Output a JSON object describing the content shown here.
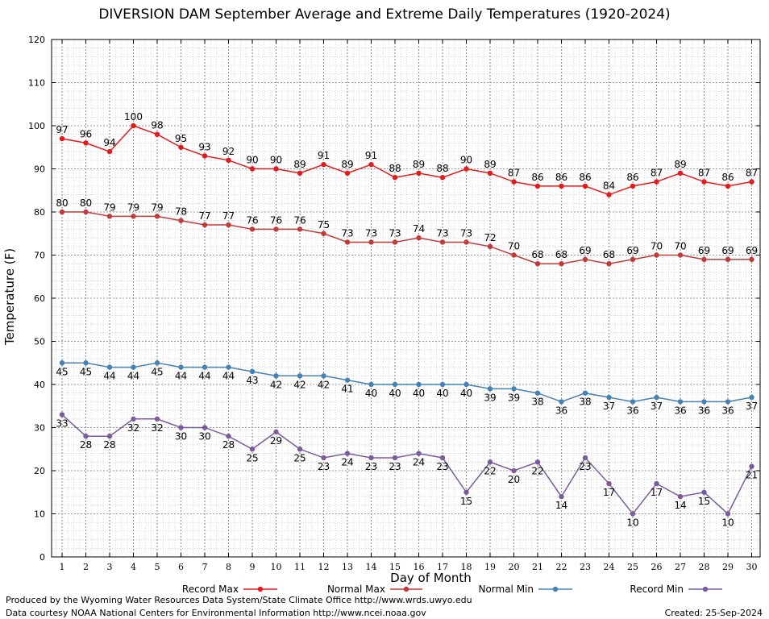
{
  "chart_data": {
    "type": "line",
    "title": "DIVERSION DAM September Average and Extreme Daily Temperatures (1920-2024)",
    "xlabel": "Day of Month",
    "ylabel": "Temperature (F)",
    "xlim": [
      1,
      30
    ],
    "ylim": [
      0,
      120
    ],
    "y_ticks": [
      0,
      10,
      20,
      30,
      40,
      50,
      60,
      70,
      80,
      90,
      100,
      110,
      120
    ],
    "x": [
      1,
      2,
      3,
      4,
      5,
      6,
      7,
      8,
      9,
      10,
      11,
      12,
      13,
      14,
      15,
      16,
      17,
      18,
      19,
      20,
      21,
      22,
      23,
      24,
      25,
      26,
      27,
      28,
      29,
      30
    ],
    "grid": true,
    "legend_position": "bottom",
    "series": [
      {
        "name": "Record Max",
        "color": "#e41a1c",
        "label_pos": "above",
        "values": [
          97,
          96,
          94,
          100,
          98,
          95,
          93,
          92,
          90,
          90,
          89,
          91,
          89,
          91,
          88,
          89,
          88,
          90,
          89,
          87,
          86,
          86,
          86,
          84,
          86,
          87,
          89,
          87,
          86,
          87
        ]
      },
      {
        "name": "Normal Max",
        "color": "#c23b3b",
        "label_pos": "above",
        "values": [
          80,
          80,
          79,
          79,
          79,
          78,
          77,
          77,
          76,
          76,
          76,
          75,
          73,
          73,
          73,
          74,
          73,
          73,
          72,
          70,
          68,
          68,
          69,
          68,
          69,
          70,
          70,
          69,
          69,
          69
        ]
      },
      {
        "name": "Normal Min",
        "color": "#4682b4",
        "label_pos": "below",
        "values": [
          45,
          45,
          44,
          44,
          45,
          44,
          44,
          44,
          43,
          42,
          42,
          42,
          41,
          40,
          40,
          40,
          40,
          40,
          39,
          39,
          38,
          36,
          38,
          37,
          36,
          37,
          36,
          36,
          36,
          37
        ]
      },
      {
        "name": "Record Min",
        "color": "#7b5b9b",
        "label_pos": "below",
        "values": [
          33,
          28,
          28,
          32,
          32,
          30,
          30,
          28,
          25,
          29,
          25,
          23,
          24,
          23,
          23,
          24,
          23,
          15,
          22,
          20,
          22,
          14,
          23,
          17,
          10,
          17,
          14,
          15,
          10,
          21
        ]
      }
    ]
  },
  "footer": {
    "produced_by": "Produced by the Wyoming Water Resources Data System/State Climate Office http://www.wrds.uwyo.edu",
    "data_courtesy": "Data courtesy NOAA National Centers for Environmental Information http://www.ncei.noaa.gov",
    "created": "Created:  25-Sep-2024"
  }
}
